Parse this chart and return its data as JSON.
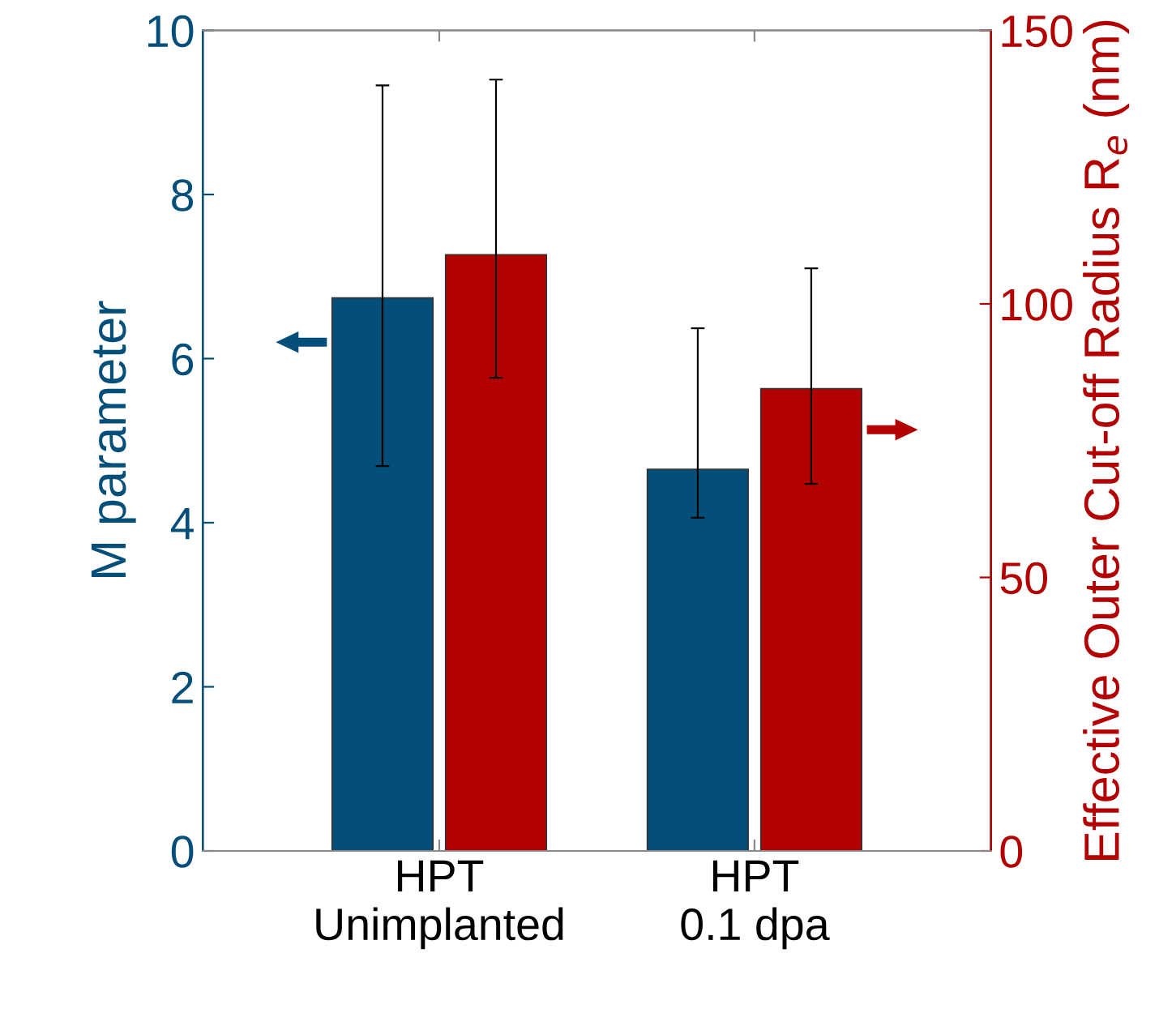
{
  "chart_data": {
    "type": "bar",
    "categories": [
      "HPT\nUnimplanted",
      "HPT\n0.1 dpa"
    ],
    "series": [
      {
        "color": "#034f7a",
        "axis": "y",
        "values": [
          6.74,
          4.65
        ],
        "errors": [
          [
            4.69,
            9.33
          ],
          [
            4.06,
            6.37
          ]
        ]
      },
      {
        "color": "#b30000",
        "axis": "y2",
        "values": [
          109,
          84.5
        ],
        "errors": [
          [
            86.5,
            141
          ],
          [
            67.1,
            106.5
          ]
        ]
      }
    ],
    "ylabel": "M parameter",
    "y2label": "Effective Outer Cut-off Radius R$_{e}$ (nm)",
    "ylim": [
      0,
      10
    ],
    "yticks": [
      0,
      2,
      4,
      6,
      8,
      10
    ],
    "y2lim": [
      0,
      150
    ],
    "y2ticks": [
      0,
      50,
      100,
      150
    ],
    "grid": false,
    "legend": false
  }
}
